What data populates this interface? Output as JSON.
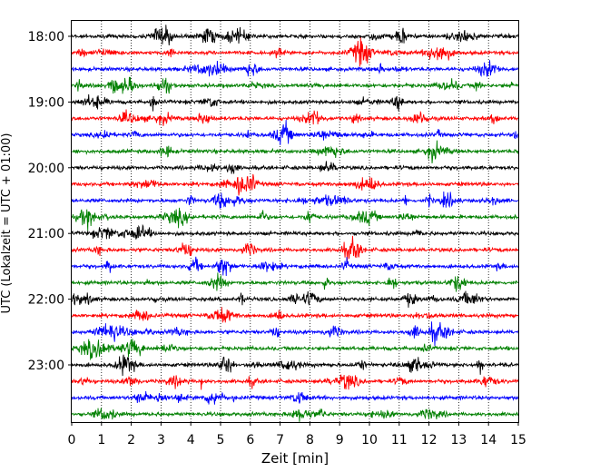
{
  "chart_data": {
    "type": "line",
    "xlabel": "Zeit  [min]",
    "ylabel": "UTC (Lokalzeit = UTC + 01:00)",
    "xlim": [
      0,
      15
    ],
    "x_ticks": [
      0,
      1,
      2,
      3,
      4,
      5,
      6,
      7,
      8,
      9,
      10,
      11,
      12,
      13,
      14,
      15
    ],
    "x_tick_labels": [
      "0",
      "1",
      "2",
      "3",
      "4",
      "5",
      "6",
      "7",
      "8",
      "9",
      "10",
      "11",
      "12",
      "13",
      "14",
      "15"
    ],
    "y_tick_labels": [
      {
        "label": "18:00",
        "trace": 0
      },
      {
        "label": "19:00",
        "trace": 4
      },
      {
        "label": "20:00",
        "trace": 8
      },
      {
        "label": "21:00",
        "trace": 12
      },
      {
        "label": "22:00",
        "trace": 16
      },
      {
        "label": "23:00",
        "trace": 20
      }
    ],
    "vertical_grid": "dotted",
    "trace_colors": [
      "#000000",
      "#ff0000",
      "#0000ff",
      "#008000"
    ],
    "traces_start": [
      "18:00",
      "18:15",
      "18:30",
      "18:45",
      "19:00",
      "19:15",
      "19:30",
      "19:45",
      "20:00",
      "20:15",
      "20:30",
      "20:45",
      "21:00",
      "21:15",
      "21:30",
      "21:45",
      "22:00",
      "22:15",
      "22:30",
      "22:45",
      "23:00",
      "23:15",
      "23:30",
      "23:45"
    ]
  }
}
